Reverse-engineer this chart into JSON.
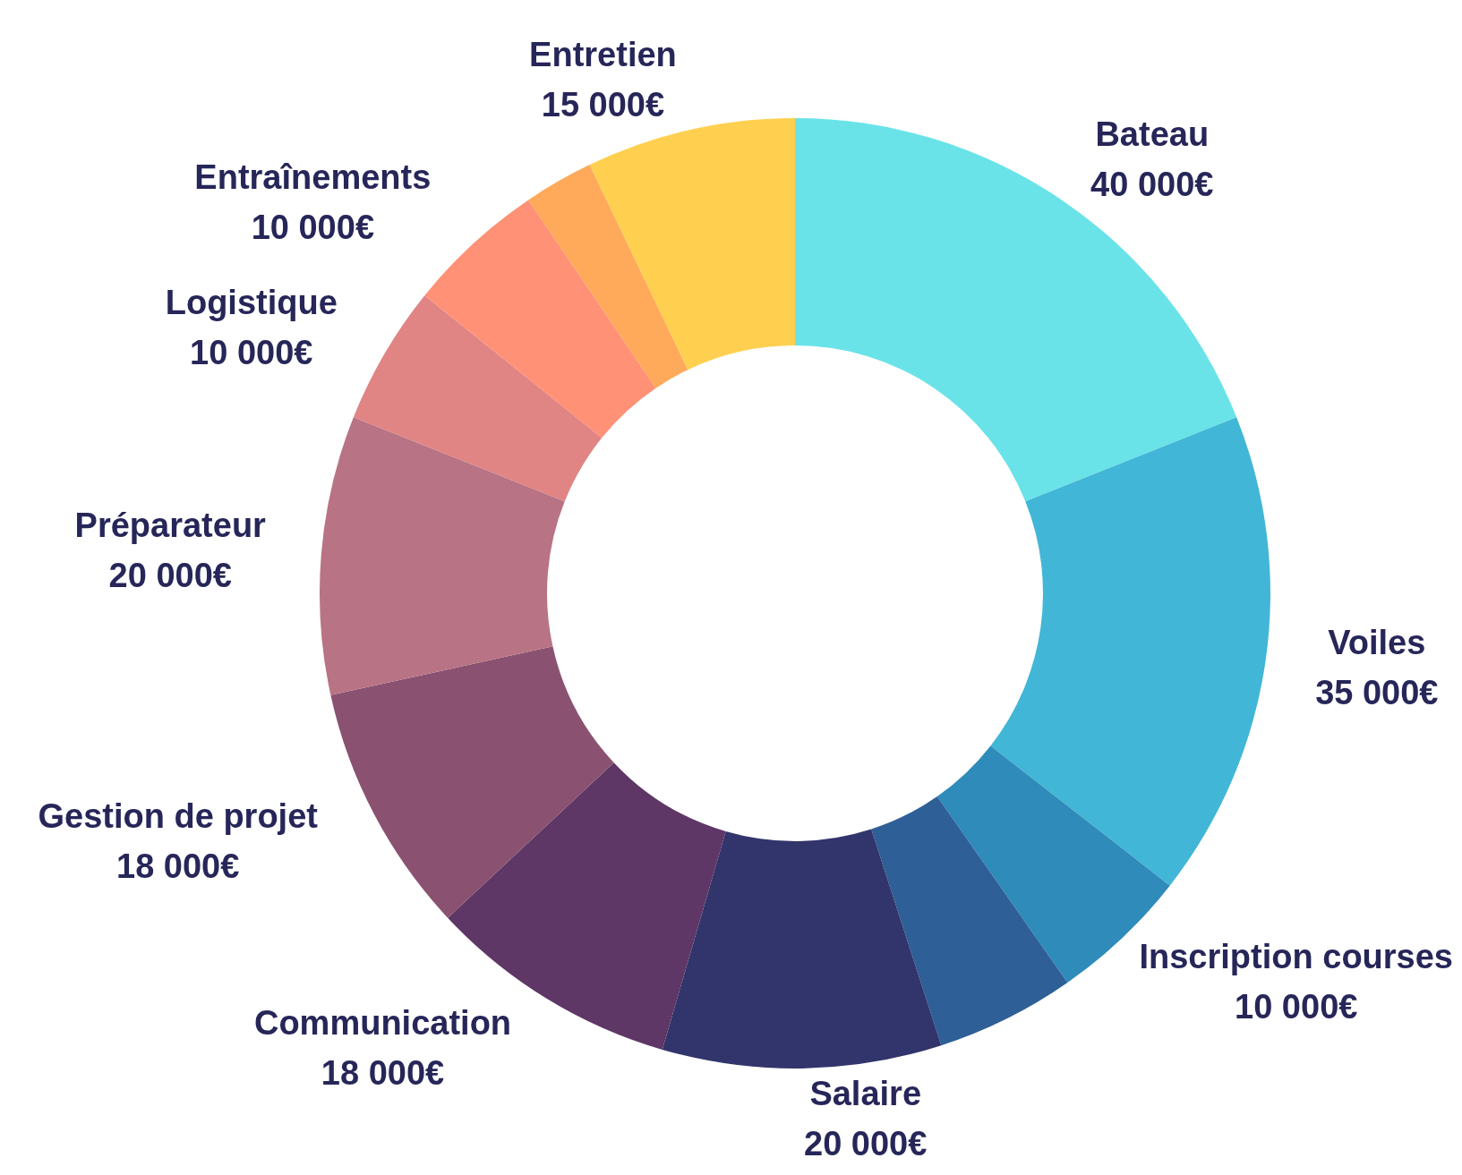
{
  "chart_data": {
    "type": "donut",
    "categories": [
      "Bateau",
      "Voiles",
      "Inscription courses",
      null,
      "Salaire",
      "Communication",
      "Gestion de projet",
      "Préparateur",
      "Logistique",
      "Entraînements",
      null,
      "Entretien"
    ],
    "values": [
      40000,
      35000,
      10000,
      10000,
      20000,
      18000,
      18000,
      20000,
      10000,
      10000,
      5000,
      15000
    ],
    "value_labels": [
      "40 000€",
      "35 000€",
      "10 000€",
      null,
      "20 000€",
      "18 000€",
      "18 000€",
      "20 000€",
      "10 000€",
      "10 000€",
      null,
      "15 000€"
    ],
    "colors": [
      "#6ae3e8",
      "#42b6d6",
      "#2e8bba",
      "#2e5f97",
      "#31356b",
      "#5e3766",
      "#8a5270",
      "#b87384",
      "#e08484",
      "#ff9176",
      "#ffaa5a",
      "#ffd050"
    ],
    "legend": false
  }
}
